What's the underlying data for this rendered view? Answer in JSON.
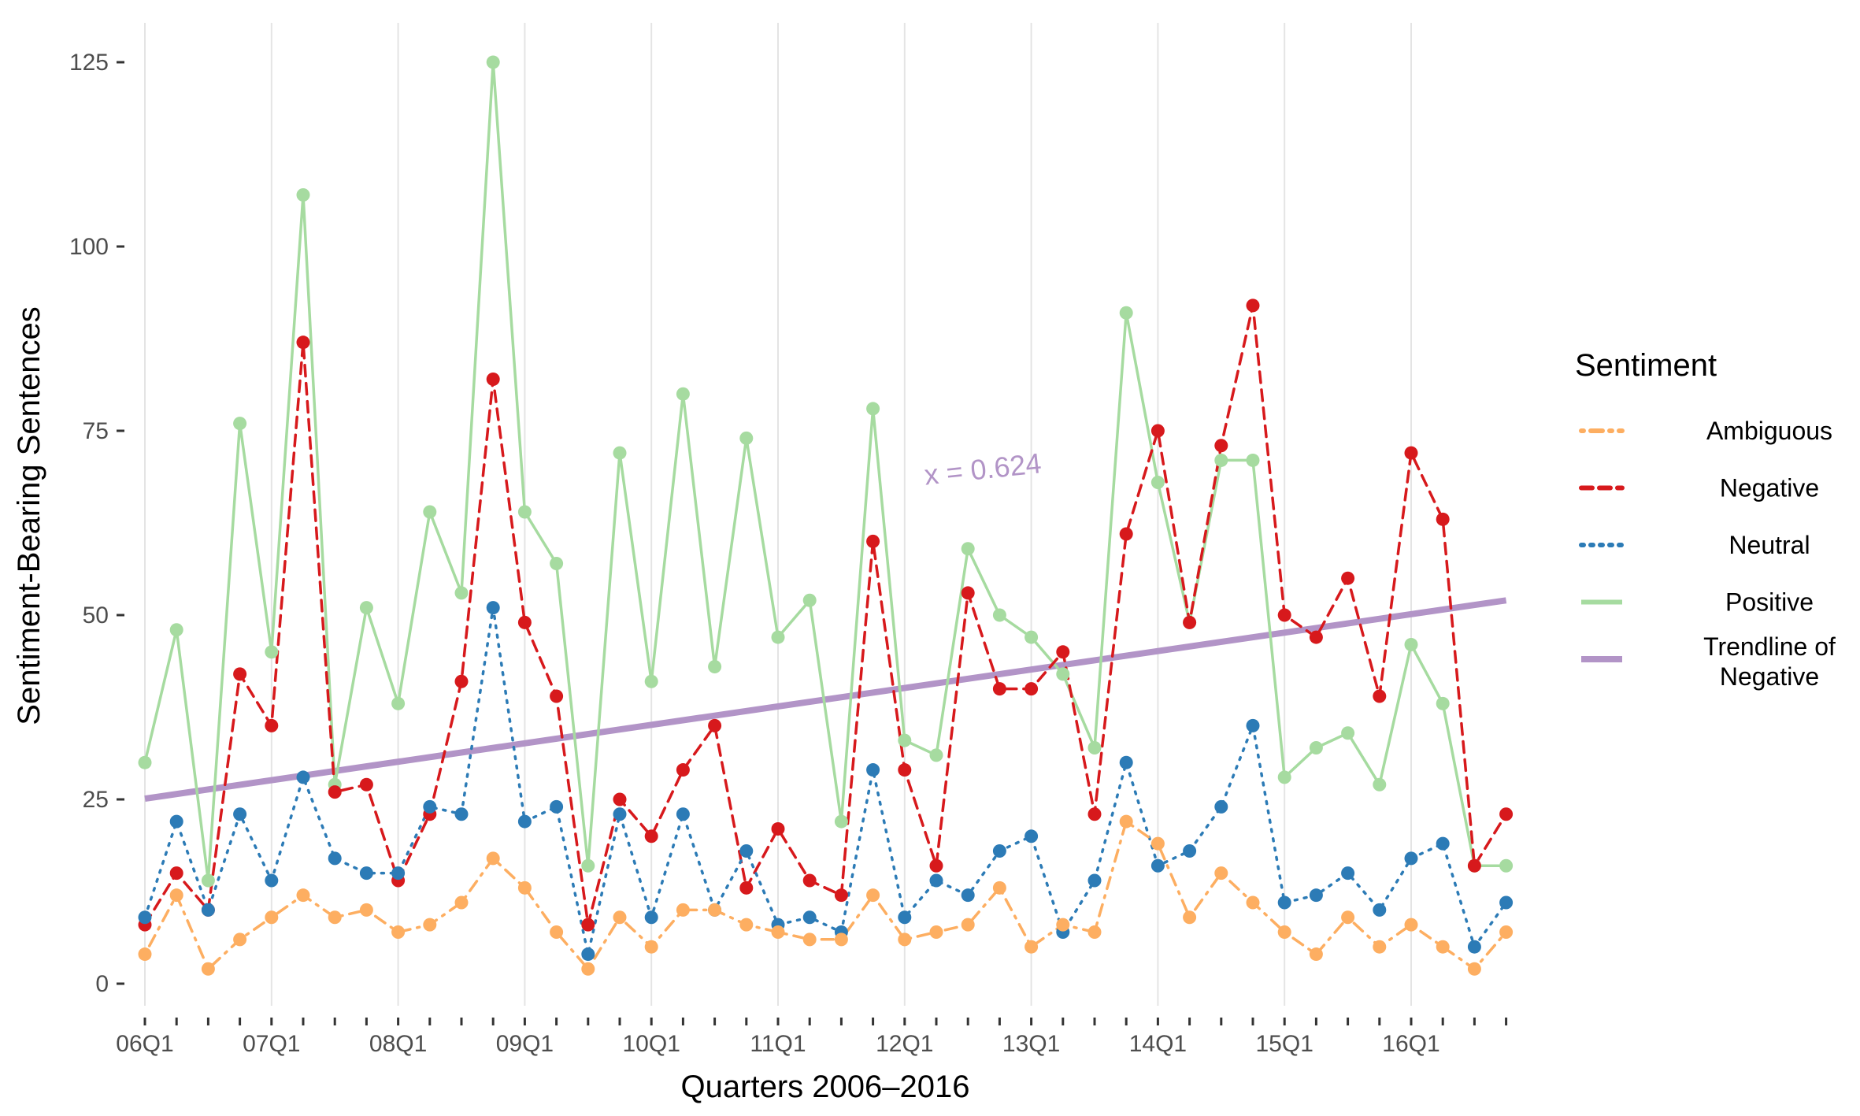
{
  "chart_data": {
    "type": "line",
    "title": "",
    "xlabel": "Quarters 2006–2016",
    "ylabel": "Sentiment-Bearing Sentences",
    "ylim": [
      0,
      125
    ],
    "yticks": [
      0,
      25,
      50,
      75,
      100,
      125
    ],
    "grid": "vertical",
    "x_tick_labels": [
      "06Q1",
      "07Q1",
      "08Q1",
      "09Q1",
      "10Q1",
      "11Q1",
      "12Q1",
      "13Q1",
      "14Q1",
      "15Q1",
      "16Q1"
    ],
    "x_tick_label_every": 4,
    "n_quarters": 44,
    "legend": {
      "title": "Sentiment",
      "position": "right",
      "entries": [
        {
          "label": "Ambiguous",
          "label_lines": [
            "Ambiguous"
          ],
          "color": "#fdae61",
          "style": "dotdash"
        },
        {
          "label": "Negative",
          "label_lines": [
            "Negative"
          ],
          "color": "#d7191c",
          "style": "dashed"
        },
        {
          "label": "Neutral",
          "label_lines": [
            "Neutral"
          ],
          "color": "#2c7bb6",
          "style": "dotted"
        },
        {
          "label": "Positive",
          "label_lines": [
            "Positive"
          ],
          "color": "#a6dba0",
          "style": "solid"
        },
        {
          "label": "Trendline of Negative",
          "label_lines": [
            "Trendline of",
            "Negative"
          ],
          "color": "#b294c7",
          "style": "solid-thick"
        }
      ]
    },
    "series": [
      {
        "name": "Positive",
        "color": "#a6dba0",
        "style": "solid",
        "values": [
          30,
          48,
          14,
          76,
          45,
          107,
          27,
          51,
          38,
          64,
          53,
          125,
          64,
          57,
          16,
          72,
          41,
          80,
          43,
          74,
          47,
          52,
          22,
          78,
          33,
          31,
          59,
          50,
          47,
          42,
          32,
          91,
          68,
          49,
          71,
          71,
          28,
          32,
          34,
          27,
          46,
          38,
          16,
          16
        ]
      },
      {
        "name": "Negative",
        "color": "#d7191c",
        "style": "dashed",
        "values": [
          8,
          15,
          10,
          42,
          35,
          87,
          26,
          27,
          14,
          23,
          41,
          82,
          49,
          39,
          8,
          25,
          20,
          29,
          35,
          13,
          21,
          14,
          12,
          60,
          29,
          16,
          53,
          40,
          40,
          45,
          23,
          61,
          75,
          49,
          73,
          92,
          50,
          47,
          55,
          39,
          72,
          63,
          16,
          23
        ]
      },
      {
        "name": "Neutral",
        "color": "#2c7bb6",
        "style": "dotted",
        "values": [
          9,
          22,
          10,
          23,
          14,
          28,
          17,
          15,
          15,
          24,
          23,
          51,
          22,
          24,
          4,
          23,
          9,
          23,
          10,
          18,
          8,
          9,
          7,
          29,
          9,
          14,
          12,
          18,
          20,
          7,
          14,
          30,
          16,
          18,
          24,
          35,
          11,
          12,
          15,
          10,
          17,
          19,
          5,
          11
        ]
      },
      {
        "name": "Ambiguous",
        "color": "#fdae61",
        "style": "dotdash",
        "values": [
          4,
          12,
          2,
          6,
          9,
          12,
          9,
          10,
          7,
          8,
          11,
          17,
          13,
          7,
          2,
          9,
          5,
          10,
          10,
          8,
          7,
          6,
          6,
          12,
          6,
          7,
          8,
          13,
          5,
          8,
          7,
          22,
          19,
          9,
          15,
          11,
          7,
          4,
          9,
          5,
          8,
          5,
          2,
          7
        ]
      }
    ],
    "trendline": {
      "name": "Trendline of Negative",
      "color": "#b294c7",
      "start": 25.1,
      "end": 52.0
    },
    "annotations": [
      {
        "text": "x = 0.624",
        "x_quarter": 26.5,
        "y": 68.5,
        "color": "#b294c7"
      }
    ]
  }
}
